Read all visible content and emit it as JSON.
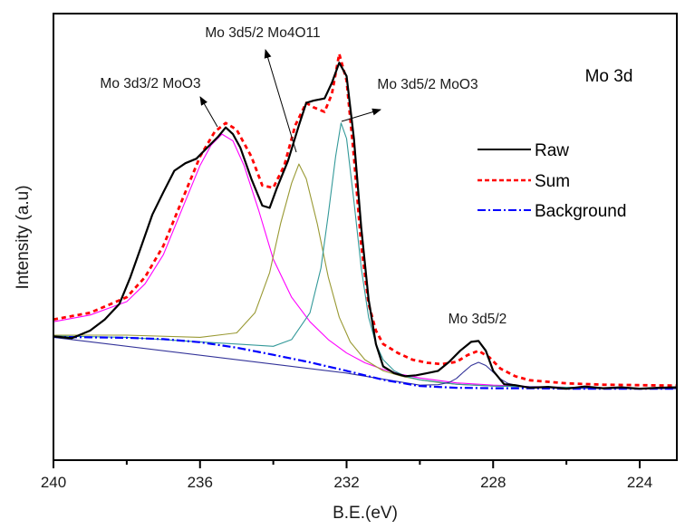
{
  "chart_data": {
    "type": "line",
    "title": "Mo 3d",
    "xlabel": "B.E.(eV)",
    "ylabel": "Intensity (a.u)",
    "xlim": [
      240,
      223
    ],
    "ylim": [
      0,
      100
    ],
    "x_reversed": true,
    "xticks": [
      240,
      236,
      232,
      228,
      224
    ],
    "xtick_labels": [
      "240",
      "236",
      "232",
      "228",
      "224"
    ],
    "x_minor_ticks": [
      238,
      234,
      230,
      226
    ],
    "yticks_shown": false,
    "grid": false,
    "legend": {
      "placement": "top-right",
      "entries": [
        {
          "name": "Raw",
          "style": "solid",
          "color": "#000000"
        },
        {
          "name": "Sum",
          "style": "dotted",
          "color": "#ff0000"
        },
        {
          "name": "Background",
          "style": "dash-dot",
          "color": "#0000ff"
        }
      ]
    },
    "annotations": [
      {
        "text": "Mo 3d3/2 MoO3",
        "target_x": 235.4
      },
      {
        "text": "Mo 3d5/2 Mo4O11",
        "target_x": 233.3
      },
      {
        "text": "Mo 3d5/2 MoO3",
        "target_x": 232.2
      },
      {
        "text": "Mo 3d5/2",
        "target_x": 228.4
      }
    ],
    "series": [
      {
        "name": "Raw",
        "color": "#000000",
        "style": "solid",
        "x": [
          240.0,
          239.5,
          239.0,
          238.6,
          238.2,
          237.9,
          237.6,
          237.3,
          237.0,
          236.7,
          236.4,
          236.1,
          235.8,
          235.5,
          235.3,
          235.1,
          234.9,
          234.6,
          234.3,
          234.1,
          233.9,
          233.6,
          233.3,
          233.1,
          232.9,
          232.6,
          232.4,
          232.2,
          232.0,
          231.8,
          231.6,
          231.4,
          231.2,
          231.0,
          230.7,
          230.4,
          230.1,
          229.8,
          229.5,
          229.2,
          228.9,
          228.6,
          228.4,
          228.2,
          228.0,
          227.7,
          227.4,
          227.0,
          226.5,
          226.0,
          225.5,
          225.0,
          224.5,
          224.0,
          223.5,
          223.0
        ],
        "y": [
          27.7,
          27.3,
          29.0,
          31.5,
          35.0,
          41.0,
          48.0,
          55.0,
          60.0,
          64.8,
          66.5,
          67.5,
          70.0,
          72.5,
          74.5,
          73.0,
          70.0,
          63.0,
          57.0,
          56.5,
          61.0,
          67.0,
          75.0,
          80.0,
          80.5,
          81.0,
          84.5,
          89.0,
          86.0,
          72.0,
          52.0,
          36.0,
          26.0,
          21.0,
          19.5,
          18.8,
          19.0,
          19.5,
          20.0,
          22.0,
          24.5,
          26.5,
          26.7,
          24.5,
          20.0,
          17.0,
          16.8,
          16.2,
          16.4,
          16.0,
          16.5,
          16.1,
          16.3,
          16.0,
          16.2,
          16.3
        ]
      },
      {
        "name": "Sum",
        "color": "#ff0000",
        "style": "dotted",
        "x": [
          240.0,
          239.0,
          238.0,
          237.5,
          237.0,
          236.5,
          236.0,
          235.6,
          235.3,
          235.0,
          234.6,
          234.3,
          234.0,
          233.7,
          233.4,
          233.1,
          232.9,
          232.6,
          232.4,
          232.2,
          232.0,
          231.8,
          231.6,
          231.4,
          231.2,
          231.0,
          230.6,
          230.2,
          229.8,
          229.4,
          229.0,
          228.7,
          228.4,
          228.1,
          227.8,
          227.4,
          227.0,
          226.0,
          225.0,
          224.0,
          223.0
        ],
        "y": [
          31.5,
          33.0,
          36.5,
          41.0,
          48.0,
          58.0,
          68.0,
          73.5,
          75.5,
          74.0,
          68.0,
          61.5,
          61.0,
          66.0,
          75.0,
          80.0,
          79.0,
          78.0,
          82.0,
          91.0,
          85.0,
          68.0,
          48.0,
          35.0,
          29.0,
          26.0,
          24.0,
          22.5,
          21.8,
          21.5,
          22.0,
          23.5,
          24.5,
          23.0,
          20.5,
          18.8,
          17.9,
          17.2,
          16.9,
          16.8,
          16.7
        ]
      },
      {
        "name": "Background",
        "color": "#0000ff",
        "style": "dash-dot",
        "x": [
          240.0,
          239.0,
          238.0,
          237.0,
          236.0,
          235.0,
          234.0,
          233.0,
          232.0,
          231.0,
          230.0,
          229.0,
          228.0,
          227.0,
          226.0,
          225.0,
          224.0,
          223.0
        ],
        "y": [
          27.6,
          27.5,
          27.4,
          27.1,
          26.4,
          25.2,
          23.6,
          21.9,
          20.0,
          18.0,
          16.6,
          16.2,
          16.1,
          16.1,
          16.0,
          16.0,
          16.0,
          16.0
        ]
      },
      {
        "name": "Mo 3d3/2 MoO3",
        "color": "#ff00ff",
        "style": "solid",
        "x": [
          240.0,
          239.0,
          238.0,
          237.5,
          237.0,
          236.5,
          236.0,
          235.7,
          235.4,
          235.1,
          234.8,
          234.4,
          234.0,
          233.5,
          233.0,
          232.5,
          232.0,
          231.5,
          231.0,
          230.5,
          230.0,
          229.0,
          228.0,
          227.0,
          226.0,
          225.0,
          224.0,
          223.0
        ],
        "y": [
          31.0,
          32.5,
          35.5,
          39.5,
          46.0,
          56.0,
          66.0,
          70.5,
          73.0,
          71.5,
          66.0,
          56.0,
          45.0,
          36.5,
          31.0,
          27.0,
          24.0,
          21.8,
          20.3,
          19.2,
          18.4,
          17.3,
          16.8,
          16.5,
          16.3,
          16.2,
          16.1,
          16.1
        ]
      },
      {
        "name": "Mo 3d5/2 Mo4O11",
        "color": "#999933",
        "style": "solid",
        "x": [
          240.0,
          238.0,
          236.0,
          235.0,
          234.5,
          234.1,
          233.8,
          233.5,
          233.3,
          233.1,
          232.8,
          232.5,
          232.2,
          231.9,
          231.5,
          231.0,
          230.5,
          230.0,
          229.5,
          229.0,
          228.0,
          227.0,
          226.0,
          224.0,
          223.0
        ],
        "y": [
          28.0,
          28.0,
          27.5,
          28.5,
          33.0,
          42.0,
          53.0,
          62.0,
          66.3,
          63.0,
          53.0,
          41.0,
          32.0,
          26.5,
          22.5,
          20.0,
          18.8,
          18.0,
          17.4,
          17.0,
          16.6,
          16.4,
          16.2,
          16.1,
          16.1
        ]
      },
      {
        "name": "Mo 3d5/2 MoO3",
        "color": "#339999",
        "style": "solid",
        "x": [
          240.0,
          238.0,
          236.0,
          235.0,
          234.0,
          233.5,
          233.0,
          232.7,
          232.5,
          232.3,
          232.15,
          232.0,
          231.8,
          231.6,
          231.4,
          231.2,
          231.0,
          230.7,
          230.4,
          230.0,
          229.5,
          229.0,
          228.0,
          226.0,
          224.0,
          223.0
        ],
        "y": [
          27.8,
          27.5,
          26.5,
          26.0,
          25.5,
          27.0,
          33.0,
          43.0,
          55.0,
          68.0,
          75.5,
          72.0,
          58.0,
          43.0,
          32.0,
          26.0,
          22.5,
          20.0,
          18.8,
          18.0,
          17.5,
          17.0,
          16.6,
          16.3,
          16.1,
          16.1
        ]
      },
      {
        "name": "Mo 3d5/2",
        "color": "#333399",
        "style": "solid",
        "x": [
          240.0,
          232.0,
          230.0,
          229.5,
          229.2,
          229.0,
          228.8,
          228.6,
          228.4,
          228.2,
          228.0,
          227.8,
          227.6,
          227.3,
          227.0,
          226.0,
          224.0,
          223.0
        ],
        "y": [
          27.5,
          19.5,
          16.8,
          16.9,
          17.4,
          18.3,
          19.8,
          21.2,
          21.9,
          21.2,
          19.7,
          18.2,
          17.2,
          16.6,
          16.3,
          16.1,
          16.0,
          16.0
        ]
      }
    ]
  }
}
